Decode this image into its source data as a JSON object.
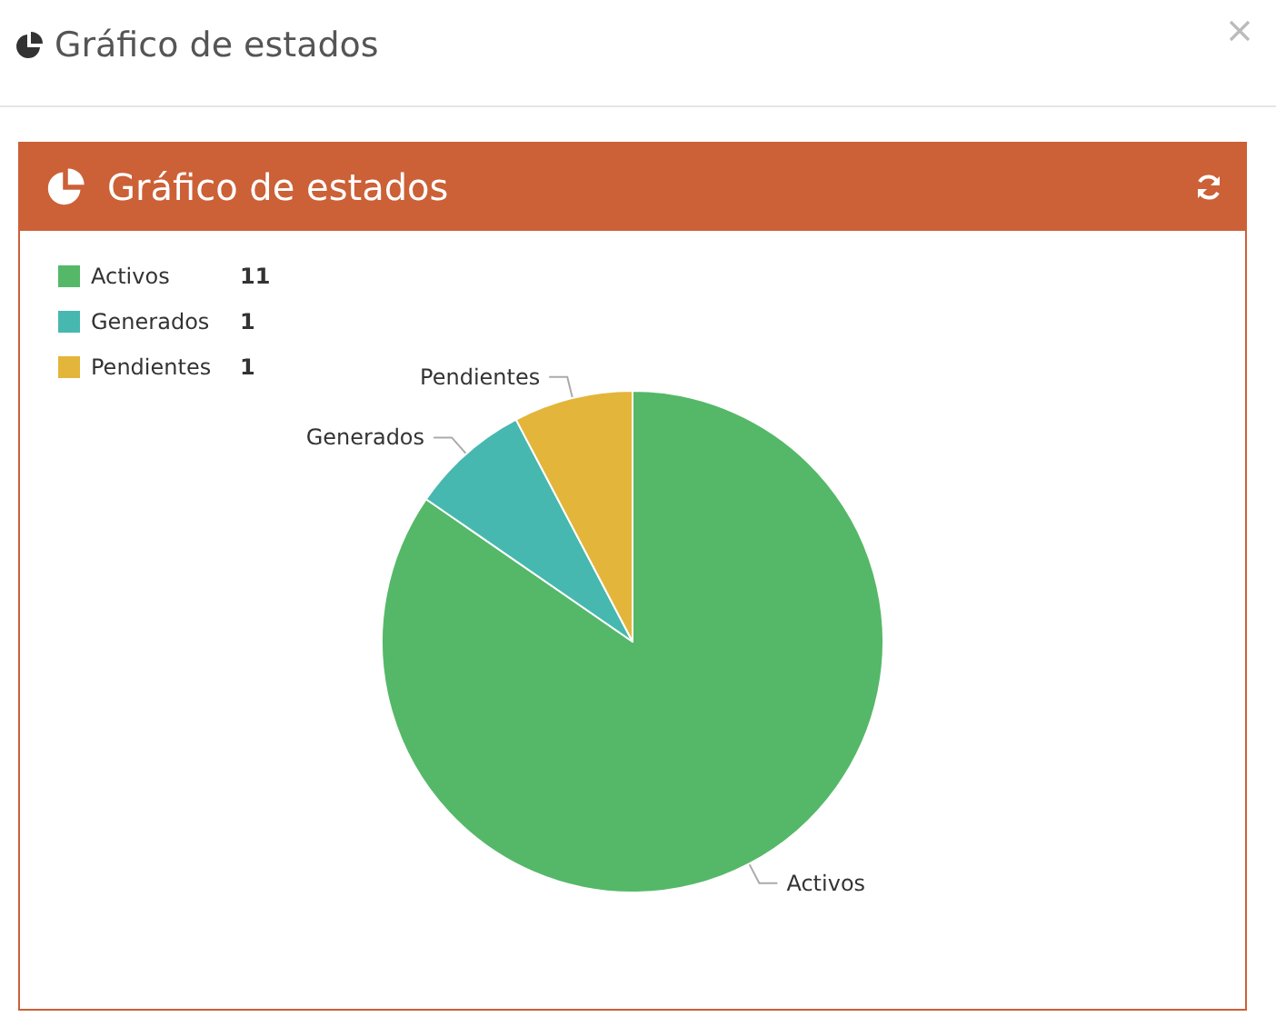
{
  "chart_data": {
    "type": "pie",
    "title": "Gráfico de estados",
    "subtitle": "Gráfico de estados",
    "categories": [
      "Activos",
      "Generados",
      "Pendientes"
    ],
    "values": [
      11,
      1,
      1
    ],
    "colors": [
      "#55b868",
      "#46b8b0",
      "#e3b53a"
    ],
    "legend": "top left",
    "data_labels": true
  }
}
